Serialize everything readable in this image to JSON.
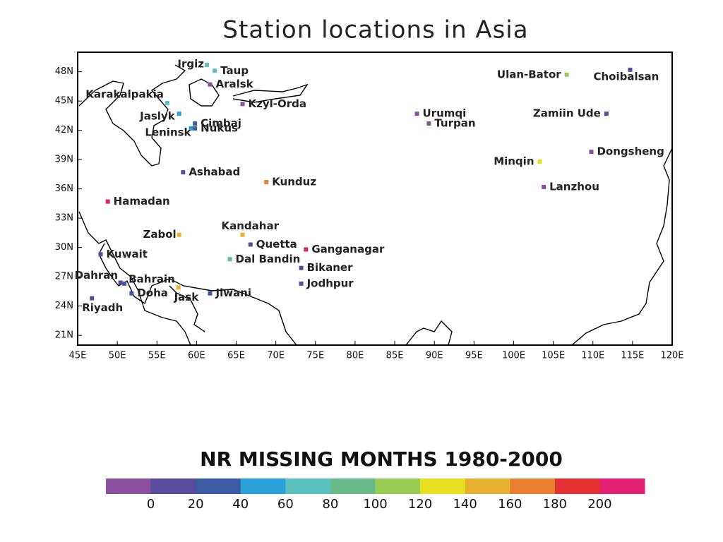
{
  "chart_data": {
    "type": "scatter",
    "title": "Station locations in Asia",
    "labels": [
      "Irgiz",
      "Taup",
      "Aralsk",
      "Karakalpakia",
      "Kzyl-Orda",
      "Jaslyk",
      "Cimbaj",
      "Nukus",
      "Leninsk",
      "Ashabad",
      "Kunduz",
      "Hamadan",
      "Kandahar",
      "Zabol",
      "Quetta",
      "Ganganagar",
      "Kuwait",
      "Dal Bandin",
      "Bikaner",
      "Dahran",
      "Bahrain",
      "Jodhpur",
      "Doha",
      "Jask",
      "Jiwani",
      "Riyadh",
      "Urumqi",
      "Turpan",
      "Ulan-Bator",
      "Choibalsan",
      "Zamiin Ude",
      "Dongsheng",
      "Minqin",
      "Lanzhou"
    ],
    "x": [
      61.3,
      62.3,
      61.7,
      56.3,
      65.8,
      57.8,
      59.8,
      59.8,
      59.3,
      58.3,
      68.8,
      48.8,
      65.8,
      57.8,
      66.8,
      73.8,
      47.9,
      64.2,
      73.2,
      50.4,
      50.9,
      73.2,
      51.8,
      57.7,
      61.7,
      46.8,
      87.8,
      89.3,
      106.7,
      114.7,
      111.7,
      109.8,
      103.3,
      103.8
    ],
    "values": [
      48.7,
      48.1,
      46.7,
      44.8,
      44.7,
      43.7,
      42.7,
      42.2,
      42.2,
      37.7,
      36.7,
      34.7,
      31.3,
      31.3,
      30.3,
      29.8,
      29.3,
      28.8,
      27.9,
      26.4,
      26.3,
      26.3,
      25.3,
      25.9,
      25.3,
      24.8,
      43.7,
      42.7,
      47.7,
      48.2,
      43.7,
      39.8,
      38.8,
      36.2
    ],
    "colors": [
      "#5bc0c0",
      "#5bc0c0",
      "#8a4f9e",
      "#5bc0c0",
      "#8a4f9e",
      "#2aa0d8",
      "#3b5ba5",
      "#3b5ba5",
      "#2aa0d8",
      "#5a4a9c",
      "#e88030",
      "#e02070",
      "#e6b030",
      "#e6b030",
      "#5a4a9c",
      "#e02070",
      "#5a4a9c",
      "#66bb88",
      "#5a4a9c",
      "#5a4a9c",
      "#3b5ba5",
      "#5a4a9c",
      "#3b5ba5",
      "#e6b030",
      "#3b5ba5",
      "#5a4a9c",
      "#8a4f9e",
      "#8a4f9e",
      "#99cc55",
      "#5a4a9c",
      "#5a4a9c",
      "#8a4f9e",
      "#e6e020",
      "#8a4f9e"
    ],
    "xlim": [
      45,
      120
    ],
    "ylim": [
      20,
      50
    ],
    "xticks": [
      {
        "value": 45,
        "label": "45E"
      },
      {
        "value": 50,
        "label": "50E"
      },
      {
        "value": 55,
        "label": "55E"
      },
      {
        "value": 60,
        "label": "60E"
      },
      {
        "value": 65,
        "label": "65E"
      },
      {
        "value": 70,
        "label": "70E"
      },
      {
        "value": 75,
        "label": "75E"
      },
      {
        "value": 80,
        "label": "80E"
      },
      {
        "value": 85,
        "label": "85E"
      },
      {
        "value": 90,
        "label": "90E"
      },
      {
        "value": 95,
        "label": "95E"
      },
      {
        "value": 100,
        "label": "100E"
      },
      {
        "value": 105,
        "label": "105E"
      },
      {
        "value": 110,
        "label": "110E"
      },
      {
        "value": 115,
        "label": "115E"
      },
      {
        "value": 120,
        "label": "120E"
      }
    ],
    "yticks": [
      {
        "value": 21,
        "label": "21N"
      },
      {
        "value": 24,
        "label": "24N"
      },
      {
        "value": 27,
        "label": "27N"
      },
      {
        "value": 30,
        "label": "30N"
      },
      {
        "value": 33,
        "label": "33N"
      },
      {
        "value": 36,
        "label": "36N"
      },
      {
        "value": 39,
        "label": "39N"
      },
      {
        "value": 42,
        "label": "42N"
      },
      {
        "value": 45,
        "label": "45N"
      },
      {
        "value": 48,
        "label": "48N"
      }
    ],
    "colorbar": {
      "title": "NR MISSING MONTHS 1980-2000",
      "colors": [
        "#8a4f9e",
        "#5a4a9c",
        "#3b5ba5",
        "#2aa0d8",
        "#5bc0c0",
        "#66bb88",
        "#99cc55",
        "#e6e020",
        "#e6b030",
        "#e88030",
        "#e03030",
        "#e02070"
      ],
      "ticks": [
        0,
        20,
        40,
        60,
        80,
        100,
        120,
        140,
        160,
        180,
        200
      ]
    }
  }
}
